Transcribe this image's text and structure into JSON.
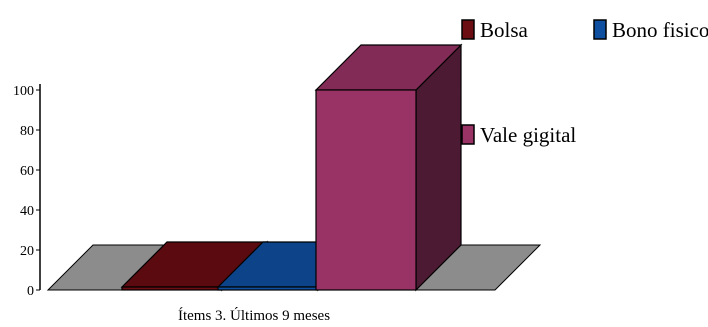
{
  "chart_data": {
    "type": "bar",
    "style": "3d",
    "categories": [
      "Ítems 3. Últimos 9 meses"
    ],
    "series": [
      {
        "name": "Bolsa",
        "values": [
          0
        ],
        "color": "#6b0d12"
      },
      {
        "name": "Bono fisico",
        "values": [
          0
        ],
        "color": "#0f4fa0"
      },
      {
        "name": "Vale gigital",
        "values": [
          100
        ],
        "color": "#993366"
      }
    ],
    "xlabel": "Ítems 3. Últimos 9  meses",
    "ylabel": "",
    "ylim": [
      0,
      100
    ],
    "yticks": [
      "0",
      "20",
      "40",
      "60",
      "80",
      "100"
    ],
    "floor_color": "#8c8c8c",
    "legend_placement": "top-right"
  }
}
